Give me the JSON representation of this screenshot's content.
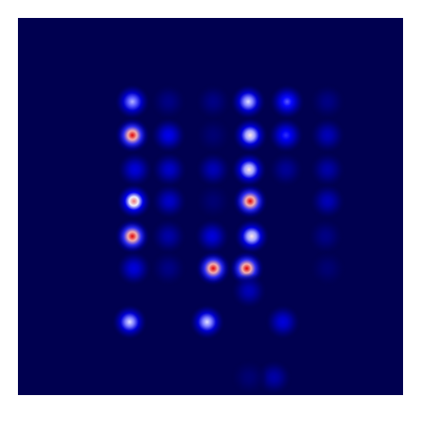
{
  "chart_data": {
    "type": "heatmap",
    "x": [
      29.7,
      39.1,
      50.7,
      59.8,
      69.9,
      80.4,
      29.7,
      39.1,
      50.7,
      60.3,
      69.6,
      80.4,
      30.4,
      39.3,
      50.7,
      60.0,
      69.6,
      80.4,
      30.1,
      39.3,
      50.7,
      60.3,
      80.4,
      29.7,
      39.1,
      50.4,
      60.7,
      79.9,
      30.1,
      39.1,
      50.7,
      59.4,
      80.4,
      60.0,
      29.0,
      49.1,
      68.8,
      66.5,
      60.0
    ],
    "y": [
      77.8,
      77.8,
      77.8,
      77.8,
      77.8,
      77.8,
      68.9,
      68.9,
      68.9,
      68.9,
      68.9,
      68.9,
      59.8,
      59.8,
      59.8,
      59.8,
      59.8,
      59.8,
      51.4,
      51.4,
      51.4,
      51.4,
      51.4,
      42.1,
      42.1,
      42.1,
      42.1,
      42.1,
      33.6,
      33.6,
      33.6,
      33.6,
      33.6,
      27.6,
      19.4,
      19.4,
      19.4,
      4.7,
      4.7
    ],
    "values": [
      0.7,
      0.15,
      0.15,
      0.75,
      0.6,
      0.15,
      1.0,
      0.45,
      0.1,
      0.8,
      0.55,
      0.3,
      0.4,
      0.35,
      0.3,
      0.8,
      0.2,
      0.25,
      0.9,
      0.35,
      0.1,
      1.0,
      0.3,
      1.0,
      0.25,
      0.4,
      0.8,
      0.15,
      0.4,
      0.15,
      1.0,
      1.0,
      0.1,
      0.3,
      0.75,
      0.75,
      0.4,
      0.25,
      0.1
    ],
    "xlim": [
      0,
      100
    ],
    "ylim": [
      0,
      100
    ],
    "grid": false,
    "tick_labels": false
  }
}
